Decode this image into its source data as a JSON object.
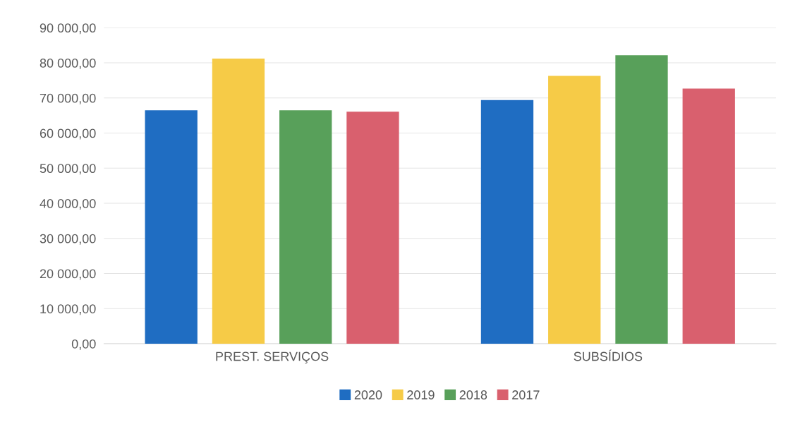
{
  "chart_data": {
    "type": "bar",
    "categories": [
      "PREST. SERVIÇOS",
      "SUBSÍDIOS"
    ],
    "series": [
      {
        "name": "2020",
        "color": "#1f6dc2",
        "values": [
          66500,
          69400
        ]
      },
      {
        "name": "2019",
        "color": "#f6cb47",
        "values": [
          81200,
          76300
        ]
      },
      {
        "name": "2018",
        "color": "#58a05a",
        "values": [
          66500,
          82200
        ]
      },
      {
        "name": "2017",
        "color": "#d9606e",
        "values": [
          66100,
          72700
        ]
      }
    ],
    "ylim": [
      0,
      90000
    ],
    "yticks": [
      {
        "value": 0,
        "label": "0,00"
      },
      {
        "value": 10000,
        "label": "10 000,00"
      },
      {
        "value": 20000,
        "label": "20 000,00"
      },
      {
        "value": 30000,
        "label": "30 000,00"
      },
      {
        "value": 40000,
        "label": "40 000,00"
      },
      {
        "value": 50000,
        "label": "50 000,00"
      },
      {
        "value": 60000,
        "label": "60 000,00"
      },
      {
        "value": 70000,
        "label": "70 000,00"
      },
      {
        "value": 80000,
        "label": "80 000,00"
      },
      {
        "value": 90000,
        "label": "90 000,00"
      }
    ],
    "grid": "y",
    "legend": "bottom"
  }
}
